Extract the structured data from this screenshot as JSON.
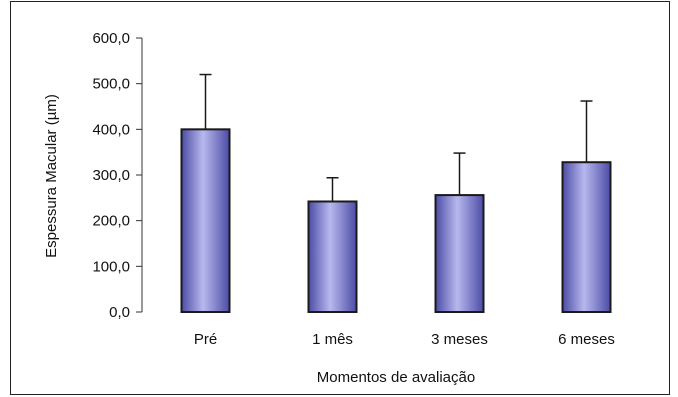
{
  "chart_data": {
    "type": "bar",
    "title": "",
    "xlabel": "Momentos de avaliação",
    "ylabel": "Espessura Macular (µm)",
    "categories": [
      "Pré",
      "1 mês",
      "3 meses",
      "6 meses"
    ],
    "values": [
      400,
      242,
      256,
      328
    ],
    "error_upper": [
      120,
      52,
      92,
      134
    ],
    "ylim": [
      0,
      600
    ],
    "yticks": [
      0,
      100,
      200,
      300,
      400,
      500,
      600
    ],
    "ytick_labels": [
      "0,0",
      "100,0",
      "200,0",
      "300,0",
      "400,0",
      "500,0",
      "600,0"
    ],
    "grid": false,
    "legend": "none",
    "colors": {
      "bar_light": "#b8b8ee",
      "bar_dark": "#4c4ca6",
      "outline": "#1a1a1a"
    }
  }
}
